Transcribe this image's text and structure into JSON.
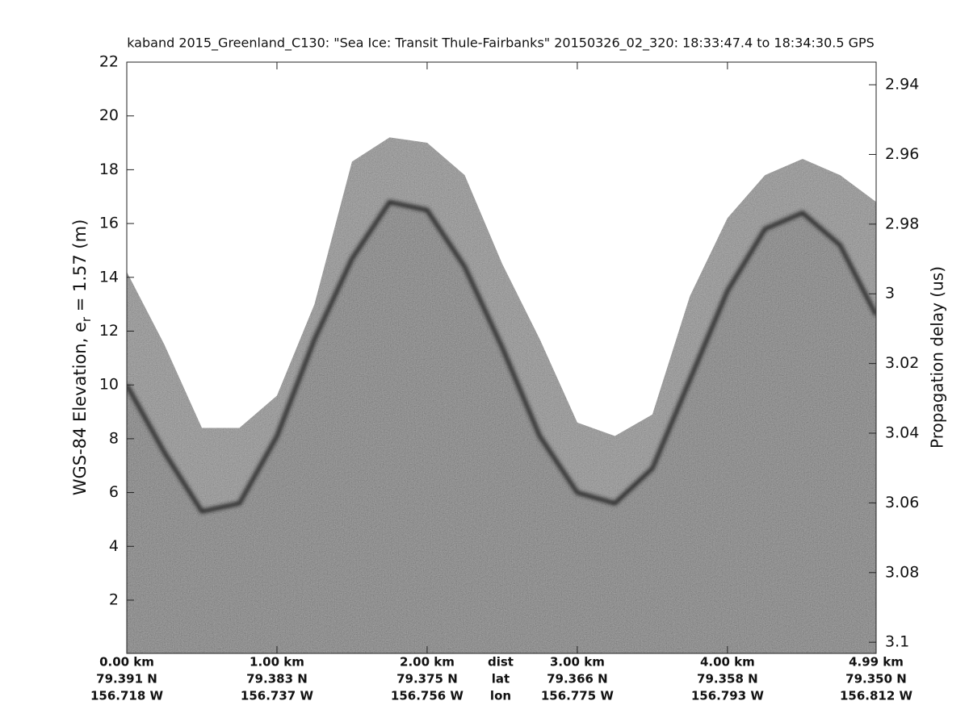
{
  "chart_data": {
    "type": "echogram",
    "title": "kaband 2015_Greenland_C130: \"Sea Ice: Transit Thule-Fairbanks\"  20150326_02_320: 18:33:47.4 to 18:34:30.5 GPS",
    "ylabel": {
      "text": "WGS-84 Elevation, e",
      "sub": "r",
      "tail": " = 1.57 (m)"
    },
    "y2label": "Propagation delay (us)",
    "xlim": [
      0,
      4.99
    ],
    "xticks": [
      {
        "value": 0,
        "label": "0.00 km"
      },
      {
        "value": 1,
        "label": "1.00 km"
      },
      {
        "value": 2,
        "label": "2.00 km"
      },
      {
        "value": 3,
        "label": "3.00 km"
      },
      {
        "value": 4,
        "label": "4.00 km"
      },
      {
        "value": 4.99,
        "label": "4.99 km"
      }
    ],
    "xtick_lat": [
      "79.391 N",
      "79.383 N",
      "79.375 N",
      "79.366 N",
      "79.358 N",
      "79.350 N"
    ],
    "xtick_lon": [
      "156.718 W",
      "156.737 W",
      "156.756 W",
      "156.775 W",
      "156.793 W",
      "156.812 W"
    ],
    "xtick_row_names": [
      "dist",
      "lat",
      "lon"
    ],
    "ylim": [
      0.02,
      22
    ],
    "yticks": [
      2,
      4,
      6,
      8,
      10,
      12,
      14,
      16,
      18,
      20,
      22
    ],
    "y2lim": [
      3.1032,
      2.9335
    ],
    "y2ticks": [
      2.94,
      2.96,
      2.98,
      3,
      3.02,
      3.04,
      3.06,
      3.08,
      3.1
    ],
    "x": [
      0,
      0.25,
      0.5,
      0.75,
      1,
      1.25,
      1.5,
      1.75,
      2,
      2.25,
      2.5,
      2.75,
      3,
      3.25,
      3.5,
      3.75,
      4,
      4.25,
      4.5,
      4.75,
      4.99
    ],
    "surface": [
      10.0,
      7.5,
      5.3,
      5.6,
      8.1,
      11.7,
      14.7,
      16.8,
      16.5,
      14.4,
      11.4,
      8.1,
      6.0,
      5.6,
      6.9,
      10.2,
      13.5,
      15.8,
      16.4,
      15.2,
      12.6
    ],
    "data_top": [
      14.2,
      11.5,
      8.4,
      8.4,
      9.6,
      13.0,
      18.3,
      19.2,
      19.0,
      17.8,
      14.5,
      11.7,
      8.6,
      8.1,
      8.9,
      13.3,
      16.2,
      17.8,
      18.4,
      17.8,
      16.8
    ]
  }
}
